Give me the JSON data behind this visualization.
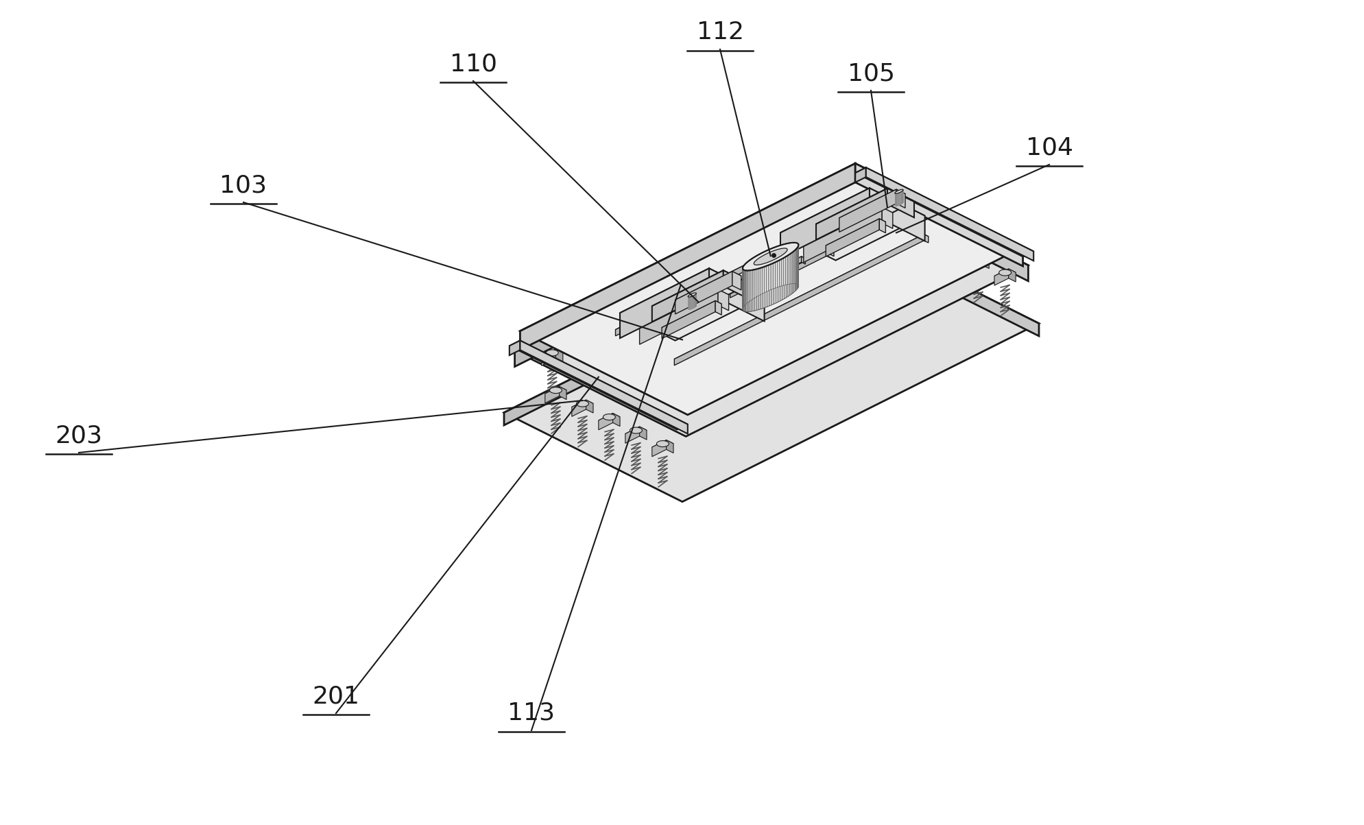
{
  "bg_color": "#ffffff",
  "line_color": "#1a1a1a",
  "figsize": [
    19.9,
    12.03
  ],
  "dpi": 100,
  "label_fontsize": 26
}
